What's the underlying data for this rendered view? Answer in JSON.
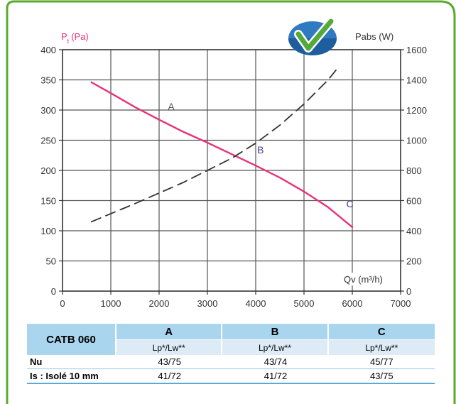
{
  "chart_data": {
    "type": "line",
    "left_axis": {
      "label_main": "P",
      "label_sub": "t",
      "label_unit": "(Pa)",
      "range": [
        0,
        400
      ],
      "ticks": [
        0,
        50,
        100,
        150,
        200,
        250,
        300,
        350,
        400
      ],
      "color": "#e8327a"
    },
    "right_axis": {
      "label": "Pabs (W)",
      "range": [
        0,
        1600
      ],
      "ticks": [
        0,
        200,
        400,
        600,
        800,
        1000,
        1200,
        1400,
        1600
      ]
    },
    "x_axis": {
      "label": "Qv (m³/h)",
      "range": [
        0,
        7000
      ],
      "ticks": [
        0,
        1000,
        2000,
        3000,
        4000,
        5000,
        6000,
        7000
      ]
    },
    "grid": true,
    "series": [
      {
        "axis": "left",
        "style": "solid",
        "color": "#e8327a",
        "x": [
          600,
          1000,
          1500,
          2000,
          2500,
          3000,
          3500,
          4000,
          4500,
          5000,
          5500,
          6000
        ],
        "y": [
          346,
          328,
          305,
          284,
          264,
          246,
          227,
          208,
          188,
          165,
          139,
          106
        ]
      },
      {
        "axis": "right",
        "style": "dashed",
        "color": "#333333",
        "x": [
          600,
          1500,
          2500,
          3000,
          3500,
          4000,
          4500,
          5000,
          5500,
          5700
        ],
        "y": [
          460,
          580,
          720,
          800,
          880,
          980,
          1100,
          1240,
          1400,
          1480
        ]
      }
    ],
    "annotations": [
      {
        "text": "A",
        "x": 2250,
        "y": 300,
        "color": "#555555"
      },
      {
        "text": "B",
        "x": 4100,
        "y": 228,
        "color": "#4a3f9a"
      },
      {
        "text": "C",
        "x": 5950,
        "y": 139,
        "color": "#4a3f9a"
      }
    ]
  },
  "table": {
    "model": "CATB 060",
    "columns": [
      "A",
      "B",
      "C"
    ],
    "subheader": "Lp*/Lw**",
    "rows": [
      {
        "label": "Nu",
        "values": [
          "43/75",
          "43/74",
          "45/77"
        ]
      },
      {
        "label": "Is : Isolé 10 mm",
        "values": [
          "41/72",
          "41/72",
          "43/75"
        ]
      }
    ]
  },
  "logo": {
    "name": "checkmark-globe-logo",
    "colors": [
      "#2f7ac0",
      "#55a83a",
      "#ffffff"
    ]
  }
}
